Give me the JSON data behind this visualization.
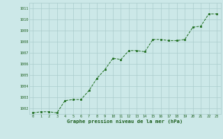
{
  "x": [
    0,
    1,
    2,
    3,
    4,
    5,
    6,
    7,
    8,
    9,
    10,
    11,
    12,
    13,
    14,
    15,
    16,
    17,
    18,
    19,
    20,
    21,
    22,
    23
  ],
  "y": [
    1001.6,
    1001.7,
    1001.7,
    1001.6,
    1002.7,
    1002.8,
    1002.8,
    1003.6,
    1004.7,
    1005.5,
    1006.5,
    1006.4,
    1007.2,
    1007.2,
    1007.1,
    1008.2,
    1008.2,
    1008.1,
    1008.1,
    1008.2,
    1009.3,
    1009.4,
    1010.5,
    1010.5
  ],
  "line_color": "#1a6b1a",
  "marker_color": "#1a6b1a",
  "bg_color": "#cce8e8",
  "grid_color": "#aacccc",
  "xlabel": "Graphe pression niveau de la mer (hPa)",
  "xlabel_color": "#1a5c1a",
  "tick_color": "#1a5c1a",
  "ylim_min": 1001.5,
  "ylim_max": 1011.5,
  "yticks": [
    1002,
    1003,
    1004,
    1005,
    1006,
    1007,
    1008,
    1009,
    1010,
    1011
  ],
  "xticks": [
    0,
    1,
    2,
    3,
    4,
    5,
    6,
    7,
    8,
    9,
    10,
    11,
    12,
    13,
    14,
    15,
    16,
    17,
    18,
    19,
    20,
    21,
    22,
    23
  ]
}
